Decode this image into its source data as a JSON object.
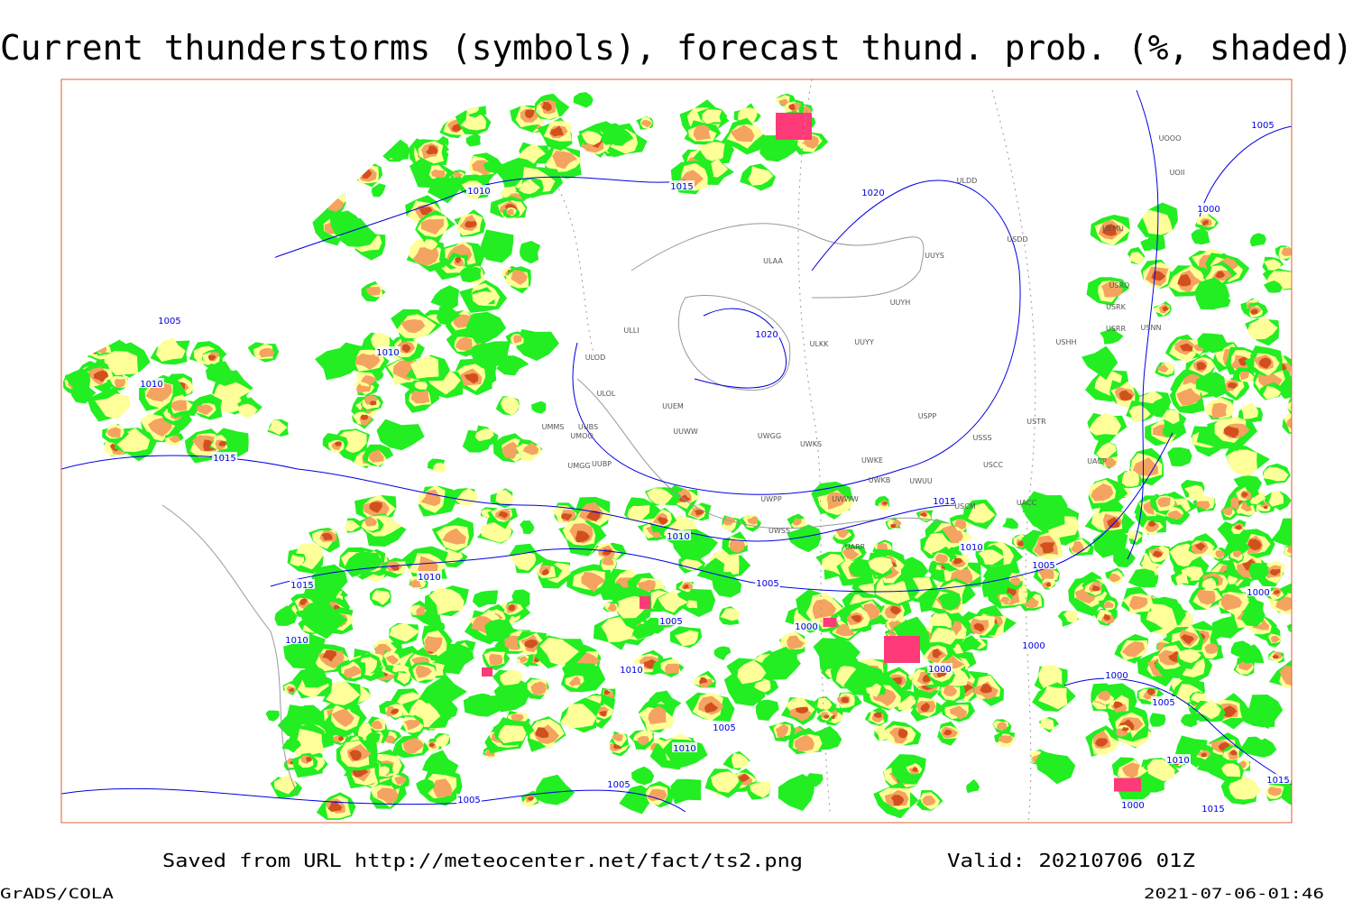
{
  "header": {
    "title": "Current thunderstorms (symbols), forecast thund. prob. (%, shaded)"
  },
  "footer": {
    "source": "Saved from URL http://meteocenter.net/fact/ts2.png",
    "valid": "Valid: 20210706 01Z",
    "software": "GrADS/COLA",
    "timestamp": "2021-07-06-01:46"
  },
  "isobars": [
    "1005",
    "1020",
    "1015",
    "1010",
    "1005",
    "1010",
    "1010",
    "1015",
    "1020",
    "1000",
    "1015",
    "1010",
    "1010",
    "1005",
    "1010",
    "1015",
    "1005",
    "1000",
    "1005",
    "1000",
    "1010",
    "1000",
    "1000",
    "1010",
    "1000",
    "1005",
    "1005",
    "1010",
    "1010",
    "1015",
    "1005",
    "1005",
    "1000",
    "1015"
  ],
  "stations": [
    "ULLI",
    "ULOD",
    "ULOL",
    "UUEM",
    "UMMS",
    "UUBS",
    "UMOO",
    "UUWW",
    "UWGG",
    "UWKS",
    "UMGG",
    "UUBP",
    "UWKE",
    "UWKB",
    "UWUU",
    "UWPP",
    "UWWW",
    "USSS",
    "USCC",
    "USCM",
    "UACC",
    "UWSS",
    "UARR",
    "ULAA",
    "UUYS",
    "UUYH",
    "UUYY",
    "ULKK",
    "USHH",
    "USPP",
    "USTR",
    "UACP",
    "ULDD",
    "USDD",
    "UEMU",
    "USRO",
    "USRK",
    "USRR",
    "USNN",
    "UOOO",
    "UOII"
  ]
}
